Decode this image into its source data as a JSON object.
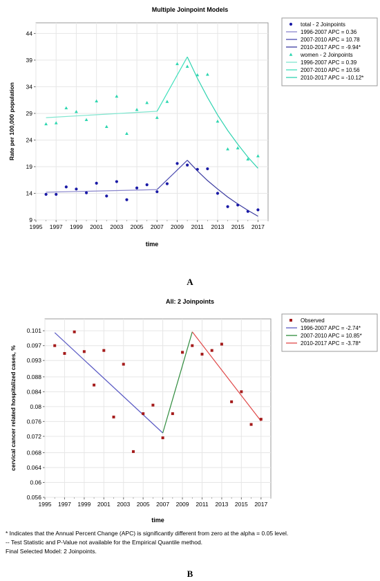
{
  "chart_data": [
    {
      "type": "line",
      "title": "Multiple Joinpoint Models",
      "xlabel": "time",
      "ylabel": "Rate per 100,000 population",
      "xlim": [
        1995,
        2018
      ],
      "ylim": [
        9,
        46
      ],
      "xticks": [
        1995,
        1997,
        1999,
        2001,
        2003,
        2005,
        2007,
        2009,
        2011,
        2013,
        2015,
        2017
      ],
      "yticks": [
        9,
        14,
        19,
        24,
        29,
        34,
        39,
        44
      ],
      "grid": true,
      "legend_position": "right",
      "series": [
        {
          "group": "total - 2 Joinpoints",
          "marker": "circle",
          "color": "#1a1aa6",
          "observed": {
            "x": [
              1996,
              1997,
              1998,
              1999,
              2000,
              2001,
              2002,
              2003,
              2004,
              2005,
              2006,
              2007,
              2008,
              2009,
              2010,
              2011,
              2012,
              2013,
              2014,
              2015,
              2016,
              2017
            ],
            "y": [
              13.8,
              13.8,
              15.2,
              14.8,
              14.1,
              15.9,
              13.5,
              16.2,
              12.8,
              15.0,
              15.6,
              14.3,
              15.8,
              19.6,
              19.3,
              18.5,
              18.6,
              14.0,
              11.5,
              11.8,
              10.6,
              10.9
            ]
          },
          "segments": [
            {
              "label": "1996-2007 APC =  0.36",
              "color": "#8a86cc",
              "x": [
                1996,
                2007
              ],
              "y": [
                14.2,
                14.7
              ]
            },
            {
              "label": "2007-2010 APC = 10.78",
              "color": "#4a4ab0",
              "x": [
                2007,
                2010
              ],
              "y": [
                14.7,
                20.2
              ]
            },
            {
              "label": "2010-2017 APC = -9.94*",
              "color": "#3a3aa0",
              "x": [
                2010,
                2011,
                2012,
                2013,
                2014,
                2015,
                2016,
                2017
              ],
              "y": [
                20.2,
                18.2,
                16.4,
                14.8,
                13.3,
                12.0,
                10.8,
                9.7
              ]
            }
          ]
        },
        {
          "group": "women - 2 Joinpoints",
          "marker": "triangle",
          "color": "#2ed6b0",
          "observed": {
            "x": [
              1996,
              1997,
              1998,
              1999,
              2000,
              2001,
              2002,
              2003,
              2004,
              2005,
              2006,
              2007,
              2008,
              2009,
              2010,
              2011,
              2012,
              2013,
              2014,
              2015,
              2016,
              2017
            ],
            "y": [
              27.0,
              27.2,
              30.0,
              29.3,
              27.8,
              31.3,
              26.5,
              32.2,
              25.2,
              29.7,
              31.0,
              28.2,
              31.2,
              38.3,
              37.8,
              36.2,
              36.3,
              27.5,
              22.3,
              22.5,
              20.4,
              21.0
            ]
          },
          "segments": [
            {
              "label": "1996-2007 APC =  0.39",
              "color": "#7fe6cf",
              "x": [
                1996,
                2007
              ],
              "y": [
                28.2,
                29.4
              ]
            },
            {
              "label": "2007-2010 APC = 10.56",
              "color": "#3ee0bb",
              "x": [
                2007,
                2010
              ],
              "y": [
                29.4,
                39.6
              ]
            },
            {
              "label": "2010-2017 APC = -10.12*",
              "color": "#2fd3b0",
              "x": [
                2010,
                2011,
                2012,
                2013,
                2014,
                2015,
                2016,
                2017
              ],
              "y": [
                39.6,
                35.6,
                32.0,
                28.7,
                25.8,
                23.2,
                20.8,
                18.7
              ]
            }
          ]
        }
      ]
    },
    {
      "type": "line",
      "title": "All: 2 Joinpoints",
      "xlabel": "time",
      "ylabel": "cervical cancer related hospitalized cases, %",
      "xlim": [
        1995,
        2018
      ],
      "ylim": [
        0.056,
        0.104
      ],
      "xticks": [
        1995,
        1997,
        1999,
        2001,
        2003,
        2005,
        2007,
        2009,
        2011,
        2013,
        2015,
        2017
      ],
      "ytick_labels": [
        "0.101",
        "0.097",
        "0.093",
        "0.088",
        "0.084",
        "0.08",
        "0.076",
        "0.072",
        "0.068",
        "0.064",
        "0.06",
        "0.056"
      ],
      "yticks": [
        0.1008,
        0.0968,
        0.0928,
        0.0884,
        0.0844,
        0.0804,
        0.0764,
        0.0724,
        0.068,
        0.064,
        0.06,
        0.056
      ],
      "grid": true,
      "legend_position": "right",
      "series": [
        {
          "group": "Observed",
          "marker": "square",
          "color": "#a51c1c",
          "observed": {
            "x": [
              1996,
              1997,
              1998,
              1999,
              2000,
              2001,
              2002,
              2003,
              2004,
              2005,
              2006,
              2007,
              2008,
              2009,
              2010,
              2011,
              2012,
              2013,
              2014,
              2015,
              2016,
              2017
            ],
            "y": [
              0.0968,
              0.0947,
              0.1005,
              0.0952,
              0.0862,
              0.0955,
              0.0776,
              0.0918,
              0.0683,
              0.0785,
              0.0808,
              0.072,
              0.0785,
              0.095,
              0.0968,
              0.0945,
              0.0955,
              0.0972,
              0.0817,
              0.0844,
              0.0756,
              0.077
            ]
          },
          "segments": [
            {
              "label": "1996-2007 APC = -2.74*",
              "color": "#5a5ac4",
              "x": [
                1996,
                2007
              ],
              "y": [
                0.1003,
                0.0733
              ]
            },
            {
              "label": "2007-2010 APC = 10.85*",
              "color": "#2e8b3c",
              "x": [
                2007,
                2010
              ],
              "y": [
                0.0733,
                0.1005
              ]
            },
            {
              "label": "2010-2017 APC = -3.78*",
              "color": "#e04848",
              "x": [
                2010,
                2017
              ],
              "y": [
                0.1005,
                0.0765
              ]
            }
          ]
        }
      ]
    }
  ],
  "panels": {
    "a": "A",
    "b": "B"
  },
  "footnotes": [
    "* Indicates that the Annual Percent Change (APC) is significantly different from zero at the alpha = 0.05 level.",
    "-- Test Statistic and P-Value not available for the Empirical Quantile method.",
    "Final Selected Model: 2 Joinpoints."
  ]
}
